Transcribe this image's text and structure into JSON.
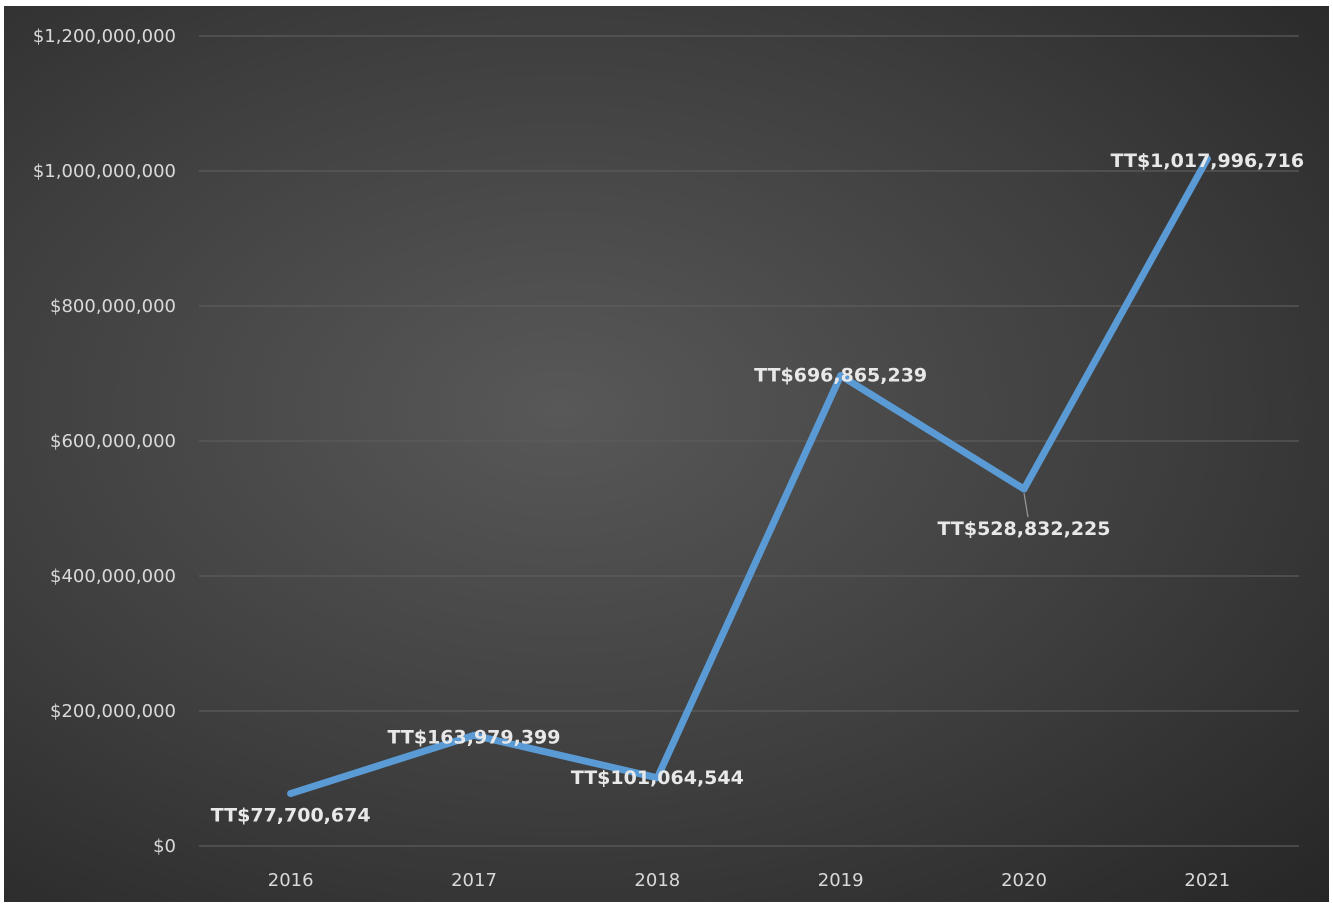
{
  "chart_data": {
    "type": "line",
    "title": "",
    "xlabel": "",
    "ylabel": "",
    "categories": [
      "2016",
      "2017",
      "2018",
      "2019",
      "2020",
      "2021"
    ],
    "series": [
      {
        "values": [
          77700674,
          163979399,
          101064544,
          696865239,
          528832225,
          1017996716
        ],
        "data_labels": [
          "TT$77,700,674",
          "TT$163,979,399",
          "TT$101,064,544",
          "TT$696,865,239",
          "TT$528,832,225",
          "TT$1,017,996,716"
        ],
        "color": "#5b9bd5"
      }
    ],
    "ylim": [
      0,
      1200000000
    ],
    "y_ticks": [
      {
        "value": 0,
        "label": "$0"
      },
      {
        "value": 200000000,
        "label": "$200,000,000"
      },
      {
        "value": 400000000,
        "label": "$400,000,000"
      },
      {
        "value": 600000000,
        "label": "$600,000,000"
      },
      {
        "value": 800000000,
        "label": "$800,000,000"
      },
      {
        "value": 1000000000,
        "label": "$1,000,000,000"
      },
      {
        "value": 1200000000,
        "label": "$1,200,000,000"
      }
    ],
    "grid": true,
    "legend": "none",
    "background_color": "#404040",
    "gridline_color": "#5c5c5c",
    "text_color": "#d9d9d9"
  }
}
